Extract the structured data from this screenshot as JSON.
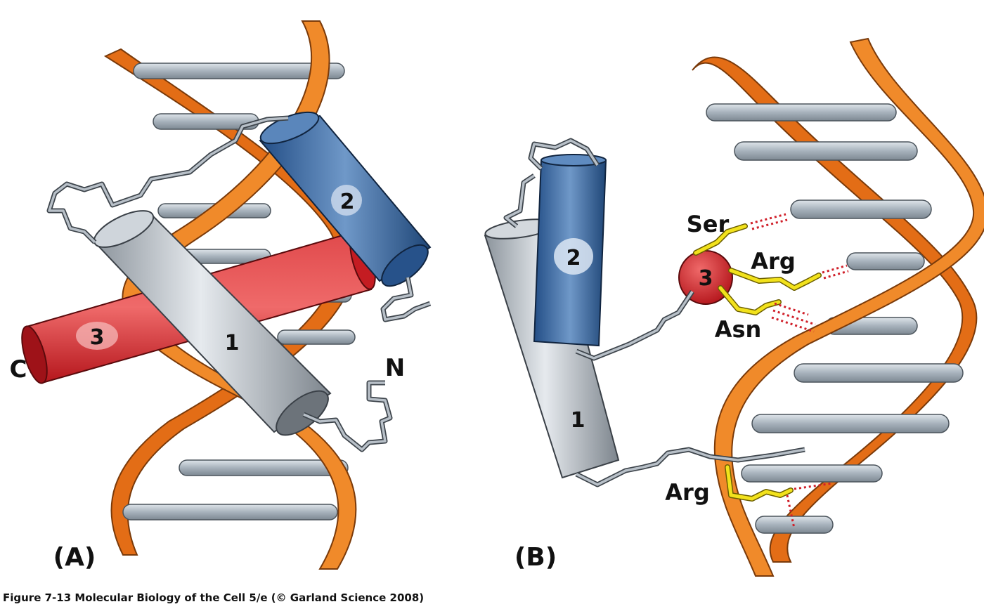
{
  "panel_a": {
    "label": "(A)",
    "helix_labels": [
      "1",
      "2",
      "3"
    ],
    "terminus_c": "C",
    "terminus_n": "N"
  },
  "panel_b": {
    "label": "(B)",
    "helix_labels": [
      "1",
      "2",
      "3"
    ],
    "residues": [
      "Ser",
      "Arg",
      "Asn",
      "Arg"
    ]
  },
  "caption": "Figure 7-13  Molecular Biology of the Cell 5/e (© Garland Science 2008)",
  "colors": {
    "dna_backbone": "#ef7a1c",
    "base_pairs": "#a9b4bf",
    "helix_gray": "#b9c0c8",
    "helix_blue": "#3f6fa6",
    "helix_red": "#d9262a",
    "side_chains": "#f2e21c",
    "h_bonds": "#d0202a"
  }
}
